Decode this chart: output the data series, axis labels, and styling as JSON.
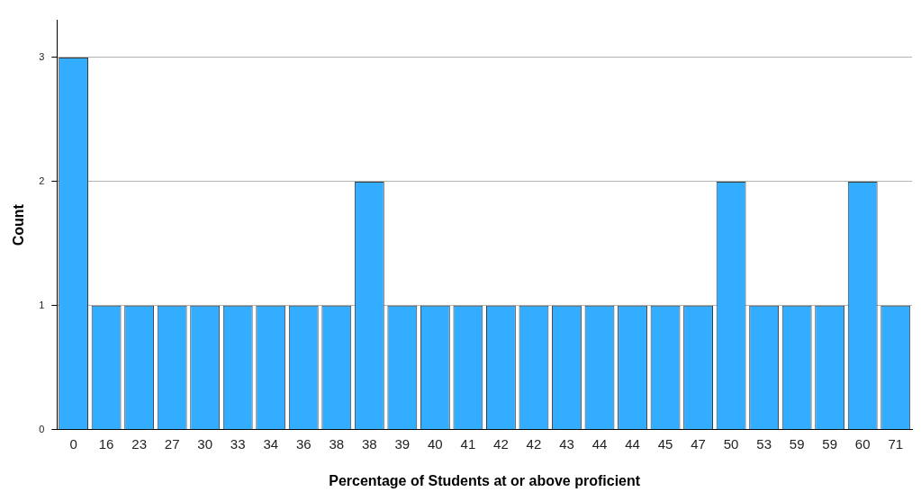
{
  "chart_data": {
    "type": "bar",
    "xlabel": "Percentage of Students at or above proficient",
    "ylabel": "Count",
    "categories": [
      "0",
      "16",
      "23",
      "27",
      "30",
      "33",
      "34",
      "36",
      "38",
      "38",
      "39",
      "40",
      "41",
      "42",
      "42",
      "43",
      "44",
      "44",
      "45",
      "47",
      "50",
      "53",
      "59",
      "59",
      "60",
      "71"
    ],
    "values": [
      3,
      1,
      1,
      1,
      1,
      1,
      1,
      1,
      1,
      2,
      1,
      1,
      1,
      1,
      1,
      1,
      1,
      1,
      1,
      1,
      2,
      1,
      1,
      1,
      2,
      1
    ],
    "color": "#33adff",
    "ylim": [
      0,
      3.3
    ],
    "yticks": [
      0,
      1,
      2,
      3
    ],
    "grid": "y",
    "legend": false
  }
}
